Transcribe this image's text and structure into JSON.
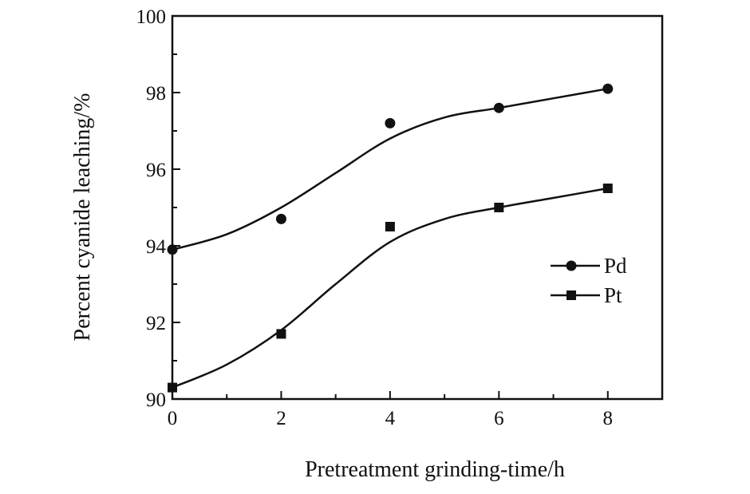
{
  "chart_data": {
    "type": "line",
    "title": "",
    "xlabel": "Pretreatment grinding-time/h",
    "ylabel": "Percent cyanide leaching/%",
    "xlim": [
      0,
      9
    ],
    "ylim": [
      90,
      100
    ],
    "x_ticks": [
      0,
      2,
      4,
      6,
      8
    ],
    "x_tick_labels": [
      "0",
      "2",
      "4",
      "6",
      "8"
    ],
    "y_ticks": [
      90,
      92,
      94,
      96,
      98,
      100
    ],
    "y_tick_labels": [
      "90",
      "92",
      "94",
      "96",
      "98",
      "100"
    ],
    "grid": false,
    "legend_position": "right",
    "x": [
      0,
      2,
      4,
      6,
      8
    ],
    "series": [
      {
        "name": "Pd",
        "marker": "circle",
        "color": "#111111",
        "values": [
          93.9,
          94.7,
          97.2,
          97.6,
          98.1
        ],
        "fit_curve": [
          [
            0,
            93.9
          ],
          [
            1,
            94.3
          ],
          [
            2,
            95.0
          ],
          [
            3,
            95.9
          ],
          [
            4,
            96.8
          ],
          [
            5,
            97.35
          ],
          [
            6,
            97.6
          ],
          [
            7,
            97.85
          ],
          [
            8,
            98.1
          ]
        ]
      },
      {
        "name": "Pt",
        "marker": "square",
        "color": "#111111",
        "values": [
          90.3,
          91.7,
          94.5,
          95.0,
          95.5
        ],
        "fit_curve": [
          [
            0,
            90.3
          ],
          [
            1,
            90.9
          ],
          [
            2,
            91.8
          ],
          [
            3,
            93.0
          ],
          [
            4,
            94.1
          ],
          [
            5,
            94.7
          ],
          [
            6,
            95.0
          ],
          [
            7,
            95.25
          ],
          [
            8,
            95.5
          ]
        ]
      }
    ]
  }
}
